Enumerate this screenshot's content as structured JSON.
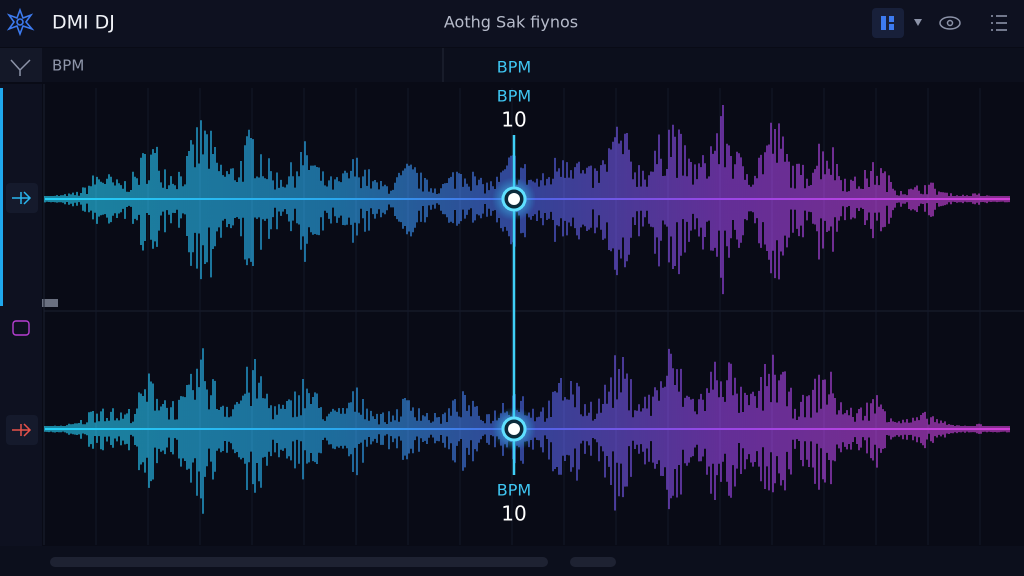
{
  "header": {
    "app_name": "DMI DJ",
    "title": "Aothg Sak fiynos"
  },
  "toolbar": {
    "label": "BPM"
  },
  "playhead": {
    "label": "BPM",
    "top_readout": {
      "label": "BPM",
      "value": 10
    },
    "bottom_readout": {
      "label": "BPM",
      "value": 10
    }
  }
}
